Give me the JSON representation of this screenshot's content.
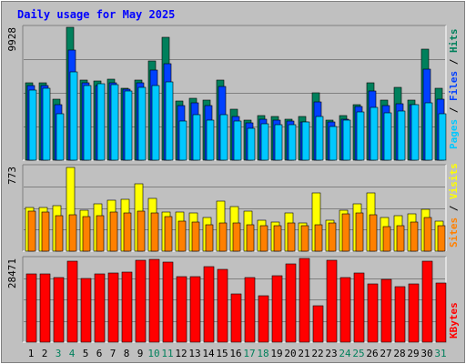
{
  "title": "Daily usage for May 2025",
  "colors": {
    "background": "#c0c0c0",
    "title": "#0000ff",
    "hits": "#00805c",
    "files": "#0040ff",
    "pages": "#00c8ff",
    "visits": "#ffff00",
    "sites": "#ff8000",
    "kbytes": "#ff0000",
    "weekend_day": "#00805c",
    "weekday": "#000000"
  },
  "chart_data": [
    {
      "type": "bar",
      "title": "Daily usage for May 2025",
      "axis_max_label": "9928",
      "ylim": [
        0,
        9928
      ],
      "legend": [
        "Pages",
        "Files",
        "Hits"
      ],
      "legend_separator": "/",
      "legend_placement": "right",
      "categories": [
        "1",
        "2",
        "3",
        "4",
        "5",
        "6",
        "7",
        "8",
        "9",
        "10",
        "11",
        "12",
        "13",
        "14",
        "15",
        "16",
        "17",
        "18",
        "19",
        "20",
        "21",
        "22",
        "23",
        "24",
        "25",
        "26",
        "27",
        "28",
        "29",
        "30",
        "31"
      ],
      "series": [
        {
          "name": "Hits",
          "values": [
            5800,
            5750,
            4550,
            9930,
            5950,
            5900,
            6050,
            5400,
            5950,
            7400,
            9160,
            4450,
            4630,
            4490,
            6010,
            3780,
            3010,
            3310,
            3260,
            3090,
            3260,
            5060,
            3010,
            3330,
            4180,
            5760,
            4490,
            5430,
            4460,
            8310,
            5380
          ]
        },
        {
          "name": "Files",
          "values": [
            5600,
            5600,
            4150,
            8200,
            5750,
            5600,
            5800,
            5300,
            5750,
            6700,
            7200,
            4100,
            4260,
            4080,
            5510,
            3270,
            2760,
            3060,
            3000,
            2920,
            2840,
            4330,
            2840,
            3070,
            4000,
            5200,
            4110,
            4230,
            4150,
            6810,
            4540
          ]
        },
        {
          "name": "Pages",
          "values": [
            5250,
            5400,
            3450,
            6600,
            5600,
            5700,
            5650,
            5200,
            5450,
            5600,
            5850,
            2920,
            3370,
            2980,
            3370,
            2920,
            2410,
            2730,
            2680,
            2640,
            2850,
            3290,
            2510,
            3000,
            3600,
            3940,
            3520,
            3700,
            4150,
            4310,
            3490
          ]
        }
      ]
    },
    {
      "type": "bar",
      "axis_max_label": "773",
      "ylim": [
        0,
        773
      ],
      "legend": [
        "Sites",
        "Visits"
      ],
      "legend_separator": "/",
      "legend_placement": "right",
      "categories": [
        "1",
        "2",
        "3",
        "4",
        "5",
        "6",
        "7",
        "8",
        "9",
        "10",
        "11",
        "12",
        "13",
        "14",
        "15",
        "16",
        "17",
        "18",
        "19",
        "20",
        "21",
        "22",
        "23",
        "24",
        "25",
        "26",
        "27",
        "28",
        "29",
        "30",
        "31"
      ],
      "series": [
        {
          "name": "Visits",
          "values": [
            399,
            401,
            417,
            765,
            375,
            433,
            468,
            476,
            612,
            484,
            356,
            355,
            345,
            306,
            453,
            406,
            363,
            284,
            264,
            352,
            260,
            535,
            280,
            378,
            435,
            533,
            305,
            326,
            337,
            380,
            274
          ]
        },
        {
          "name": "Sites",
          "values": [
            367,
            359,
            325,
            329,
            319,
            321,
            357,
            351,
            363,
            346,
            319,
            277,
            266,
            244,
            260,
            257,
            244,
            229,
            230,
            254,
            232,
            243,
            254,
            341,
            352,
            332,
            222,
            234,
            270,
            311,
            230
          ]
        }
      ]
    },
    {
      "type": "bar",
      "axis_max_label": "28471",
      "ylim": [
        0,
        28471
      ],
      "legend": [
        "KBytes"
      ],
      "legend_placement": "right",
      "categories": [
        "1",
        "2",
        "3",
        "4",
        "5",
        "6",
        "7",
        "8",
        "9",
        "10",
        "11",
        "12",
        "13",
        "14",
        "15",
        "16",
        "17",
        "18",
        "19",
        "20",
        "21",
        "22",
        "23",
        "24",
        "25",
        "26",
        "27",
        "28",
        "29",
        "30",
        "31"
      ],
      "series": [
        {
          "name": "KBytes",
          "values": [
            23250,
            23100,
            21900,
            27400,
            21700,
            23300,
            23600,
            23700,
            27900,
            28100,
            27300,
            22400,
            22300,
            25600,
            24900,
            16300,
            22000,
            15900,
            22700,
            26700,
            28400,
            12300,
            27900,
            22000,
            23600,
            19900,
            21300,
            18900,
            19800,
            27400,
            20200
          ]
        }
      ]
    }
  ],
  "days": [
    {
      "label": "1",
      "weekend": false
    },
    {
      "label": "2",
      "weekend": false
    },
    {
      "label": "3",
      "weekend": true
    },
    {
      "label": "4",
      "weekend": true
    },
    {
      "label": "5",
      "weekend": false
    },
    {
      "label": "6",
      "weekend": false
    },
    {
      "label": "7",
      "weekend": false
    },
    {
      "label": "8",
      "weekend": false
    },
    {
      "label": "9",
      "weekend": false
    },
    {
      "label": "10",
      "weekend": true
    },
    {
      "label": "11",
      "weekend": true
    },
    {
      "label": "12",
      "weekend": false
    },
    {
      "label": "13",
      "weekend": false
    },
    {
      "label": "14",
      "weekend": false
    },
    {
      "label": "15",
      "weekend": false
    },
    {
      "label": "16",
      "weekend": false
    },
    {
      "label": "17",
      "weekend": true
    },
    {
      "label": "18",
      "weekend": true
    },
    {
      "label": "19",
      "weekend": false
    },
    {
      "label": "20",
      "weekend": false
    },
    {
      "label": "21",
      "weekend": false
    },
    {
      "label": "22",
      "weekend": false
    },
    {
      "label": "23",
      "weekend": false
    },
    {
      "label": "24",
      "weekend": true
    },
    {
      "label": "25",
      "weekend": true
    },
    {
      "label": "26",
      "weekend": false
    },
    {
      "label": "27",
      "weekend": false
    },
    {
      "label": "28",
      "weekend": false
    },
    {
      "label": "29",
      "weekend": false
    },
    {
      "label": "30",
      "weekend": false
    },
    {
      "label": "31",
      "weekend": true
    }
  ]
}
